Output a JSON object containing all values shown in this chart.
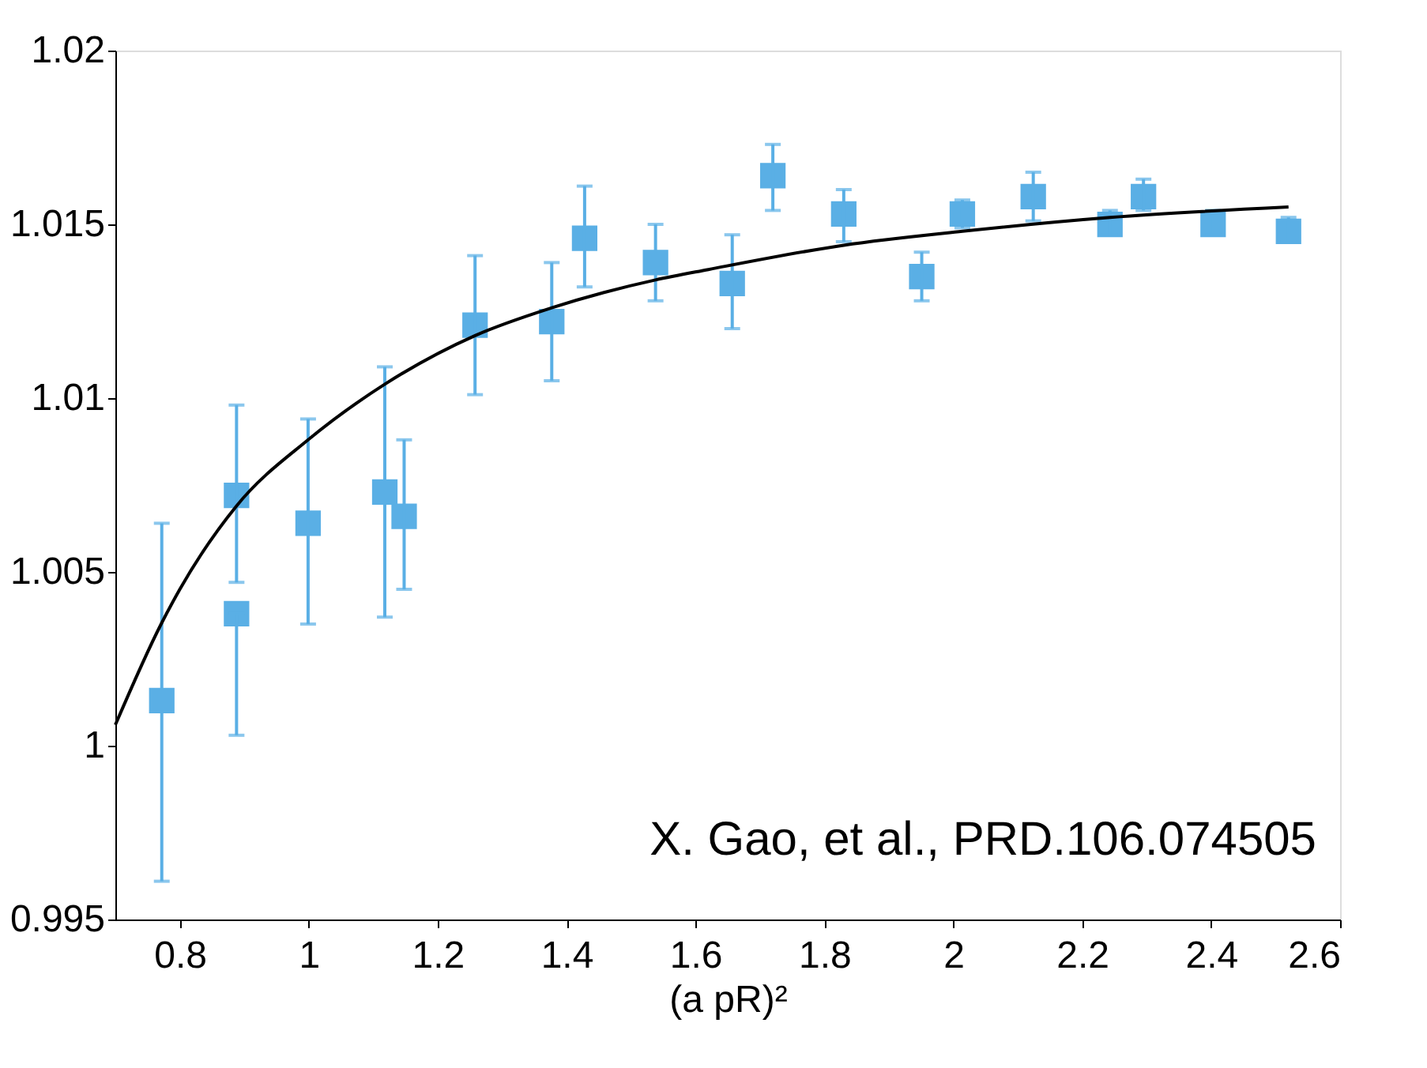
{
  "chart_data": {
    "type": "scatter",
    "xlabel": "(a pR)²",
    "xlim": [
      0.7,
      2.6
    ],
    "xticks": [
      0.8,
      1,
      1.2,
      1.4,
      1.6,
      1.8,
      2,
      2.2,
      2.4,
      2.6
    ],
    "ylim": [
      0.995,
      1.02
    ],
    "yticks": [
      0.995,
      1,
      1.005,
      1.01,
      1.015,
      1.02
    ],
    "grid": false,
    "legend": false,
    "annotations": [
      "X. Gao, et al., PRD.106.074505"
    ],
    "series": [
      {
        "color": "#5aafe5",
        "marker": "square",
        "x": [
          0.772,
          0.888,
          0.888,
          0.999,
          1.118,
          1.148,
          1.258,
          1.377,
          1.428,
          1.538,
          1.657,
          1.72,
          1.83,
          1.951,
          2.014,
          2.124,
          2.243,
          2.295,
          2.403,
          2.52
        ],
        "values": [
          1.0013,
          1.0072,
          1.0038,
          1.0064,
          1.0073,
          1.0066,
          1.0121,
          1.0122,
          1.0146,
          1.0139,
          1.0133,
          1.0164,
          1.0153,
          1.0135,
          1.0153,
          1.0158,
          1.015,
          1.0158,
          1.015,
          1.0148
        ],
        "errors": [
          [
            0.9961,
            1.0064
          ],
          [
            1.0047,
            1.0098
          ],
          [
            1.0003,
            1.0038
          ],
          [
            1.0035,
            1.0094
          ],
          [
            1.0037,
            1.0109
          ],
          [
            1.0045,
            1.0088
          ],
          [
            1.0101,
            1.0141
          ],
          [
            1.0105,
            1.0139
          ],
          [
            1.0132,
            1.0161
          ],
          [
            1.0128,
            1.015
          ],
          [
            1.012,
            1.0147
          ],
          [
            1.0154,
            1.0173
          ],
          [
            1.0145,
            1.016
          ],
          [
            1.0128,
            1.0142
          ],
          [
            1.0149,
            1.0157
          ],
          [
            1.0151,
            1.0165
          ],
          [
            1.0147,
            1.0154
          ],
          [
            1.0154,
            1.0163
          ],
          [
            1.0147,
            1.0154
          ],
          [
            1.0145,
            1.0152
          ]
        ]
      },
      {
        "type": "line",
        "color": "#000000",
        "marker": "none",
        "line_style": "solid",
        "x": [
          0.7,
          0.771,
          0.8,
          0.888,
          0.999,
          1.118,
          1.258,
          1.377,
          1.538,
          1.62,
          1.83,
          2.014,
          2.243,
          2.52
        ],
        "values": [
          1.0006,
          1.0035,
          1.0045,
          1.0069,
          1.0088,
          1.0104,
          1.0118,
          1.0126,
          1.0134,
          1.0137,
          1.0144,
          1.0148,
          1.0152,
          1.0155
        ]
      }
    ]
  }
}
